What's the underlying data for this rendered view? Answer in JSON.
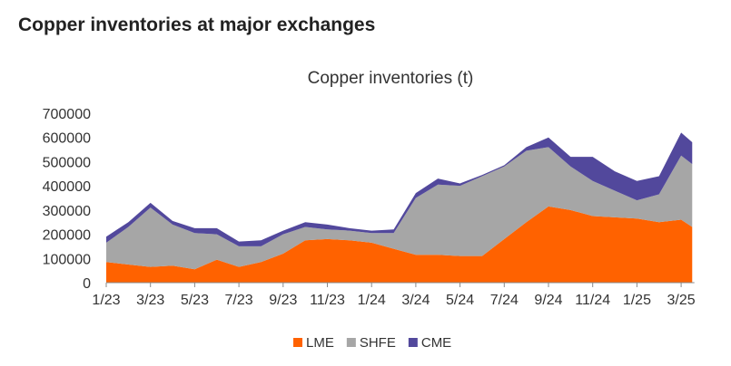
{
  "header": {
    "title": "Copper inventories at major exchanges"
  },
  "chart_data": {
    "type": "area",
    "stacked": true,
    "title": "Copper inventories (t)",
    "xlabel": "",
    "ylabel": "",
    "ylim": [
      0,
      700000
    ],
    "yticks": [
      "0",
      "100000",
      "200000",
      "300000",
      "400000",
      "500000",
      "600000",
      "700000"
    ],
    "xtick_labels": [
      "1/23",
      "3/23",
      "5/23",
      "7/23",
      "9/23",
      "11/23",
      "1/24",
      "3/24",
      "5/24",
      "7/24",
      "9/24",
      "11/24",
      "1/25",
      "3/25"
    ],
    "x_unit": "months since 1/23",
    "x": [
      0,
      1,
      2,
      3,
      4,
      5,
      6,
      7,
      8,
      9,
      10,
      11,
      12,
      13,
      14,
      15,
      16,
      17,
      18,
      19,
      20,
      21,
      22,
      23,
      24,
      25,
      26,
      26.5
    ],
    "series": [
      {
        "name": "LME",
        "color": "#FF6200",
        "values": [
          85000,
          75000,
          65000,
          70000,
          55000,
          95000,
          65000,
          85000,
          120000,
          175000,
          180000,
          175000,
          165000,
          140000,
          115000,
          115000,
          110000,
          110000,
          180000,
          250000,
          315000,
          300000,
          275000,
          270000,
          265000,
          250000,
          260000,
          230000
        ]
      },
      {
        "name": "SHFE",
        "color": "#A6A6A6",
        "values": [
          80000,
          155000,
          245000,
          170000,
          150000,
          105000,
          85000,
          65000,
          80000,
          55000,
          40000,
          40000,
          40000,
          65000,
          235000,
          290000,
          290000,
          330000,
          300000,
          295000,
          245000,
          180000,
          145000,
          110000,
          75000,
          115000,
          265000,
          260000
        ]
      },
      {
        "name": "CME",
        "color": "#52489C",
        "values": [
          25000,
          20000,
          20000,
          15000,
          20000,
          25000,
          20000,
          25000,
          15000,
          20000,
          20000,
          10000,
          10000,
          15000,
          20000,
          25000,
          10000,
          5000,
          5000,
          15000,
          40000,
          40000,
          100000,
          80000,
          80000,
          75000,
          95000,
          90000
        ]
      }
    ],
    "legend": {
      "position": "bottom",
      "entries": [
        "LME",
        "SHFE",
        "CME"
      ]
    },
    "grid": false
  }
}
